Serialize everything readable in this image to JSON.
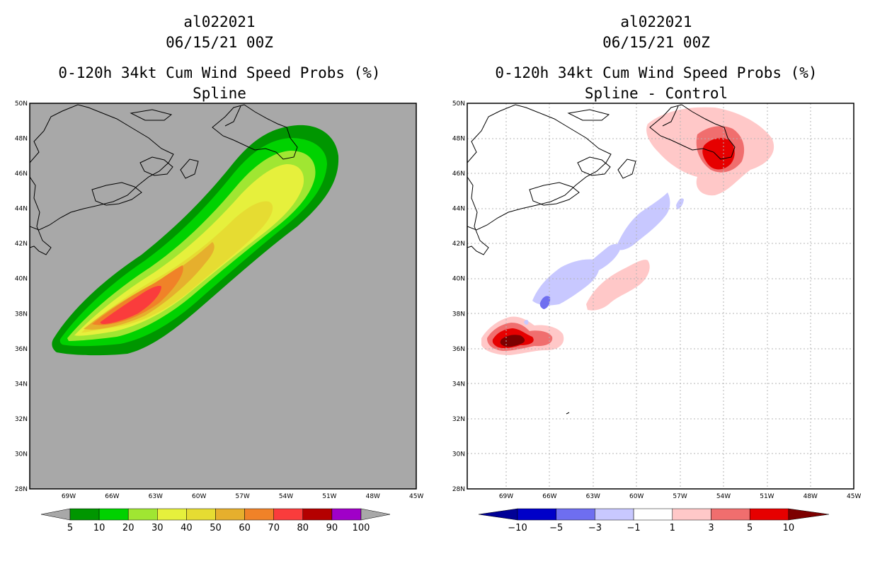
{
  "panels": [
    {
      "storm_id": "al022021",
      "datetime": "06/15/21 00Z",
      "product": "0-120h 34kt Cum Wind Speed Probs (%)",
      "subtitle": "Spline",
      "background": "#a8a8a8",
      "colorbar": {
        "labels": [
          "5",
          "10",
          "20",
          "30",
          "40",
          "50",
          "60",
          "70",
          "80",
          "90",
          "100"
        ],
        "colors": [
          "#009600",
          "#00d200",
          "#a0e632",
          "#e6f03c",
          "#e6dc32",
          "#e6af2d",
          "#f08228",
          "#fa3c3c",
          "#b40000",
          "#a000c8"
        ],
        "end_color": "#a8a8a8"
      }
    },
    {
      "storm_id": "al022021",
      "datetime": "06/15/21 00Z",
      "product": "0-120h 34kt Cum Wind Speed Probs (%)",
      "subtitle": "Spline - Control",
      "background": "#ffffff",
      "colorbar": {
        "labels": [
          "-10",
          "-5",
          "-3",
          "-1",
          "1",
          "3",
          "5",
          "10"
        ],
        "colors": [
          "#0000c8",
          "#6e6ef0",
          "#c8c8ff",
          "#ffffff",
          "#ffc8c8",
          "#f06e6e",
          "#e60000"
        ],
        "left_end_color": "#000096",
        "right_end_color": "#7d0000"
      }
    }
  ],
  "axes": {
    "lat_labels": [
      "50N",
      "48N",
      "46N",
      "44N",
      "42N",
      "40N",
      "38N",
      "36N",
      "34N",
      "32N",
      "30N",
      "28N"
    ],
    "lon_labels": [
      "69W",
      "66W",
      "63W",
      "60W",
      "57W",
      "54W",
      "51W",
      "48W",
      "45W"
    ]
  }
}
